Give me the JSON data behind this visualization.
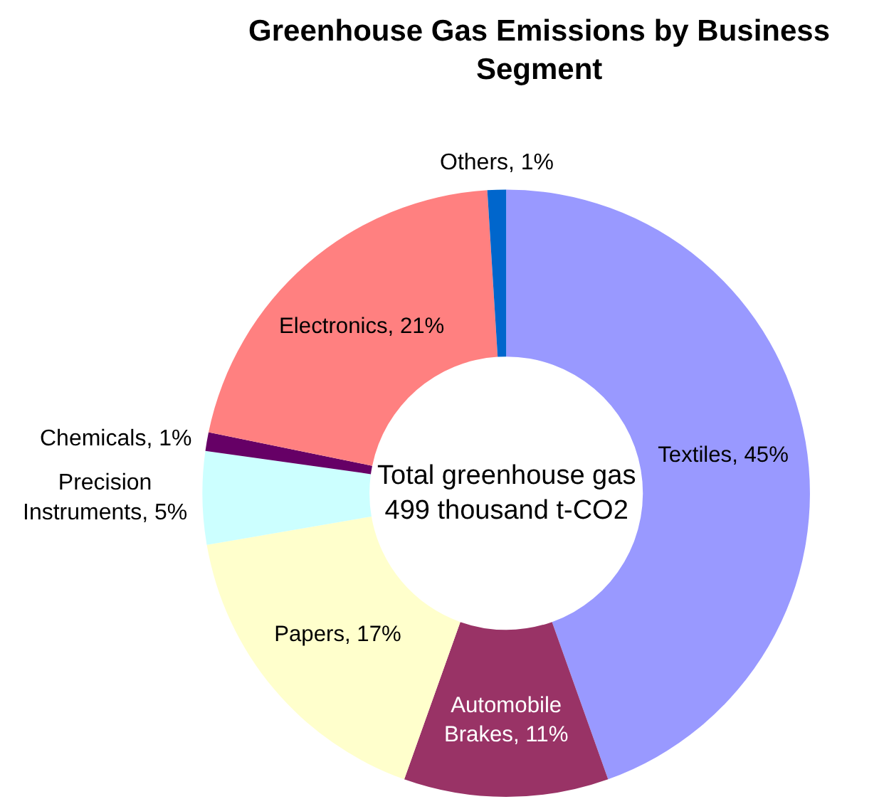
{
  "chart_data": {
    "type": "donut",
    "title": "Greenhouse Gas Emissions by Business Segment",
    "categories": [
      "Textiles",
      "Automobile Brakes",
      "Papers",
      "Precision Instruments",
      "Chemicals",
      "Electronics",
      "Others"
    ],
    "values": [
      45,
      11,
      17,
      5,
      1,
      21,
      1
    ],
    "value_labels": [
      "45%",
      "11%",
      "17%",
      "5%",
      "1%",
      "21%",
      "1%"
    ],
    "colors": [
      "#9999ff",
      "#993366",
      "#ffffcc",
      "#ccffff",
      "#660066",
      "#ff8080",
      "#0066cc"
    ],
    "annotations": [
      "Total greenhouse gas 499 thousand t-CO2"
    ],
    "legend": false
  }
}
